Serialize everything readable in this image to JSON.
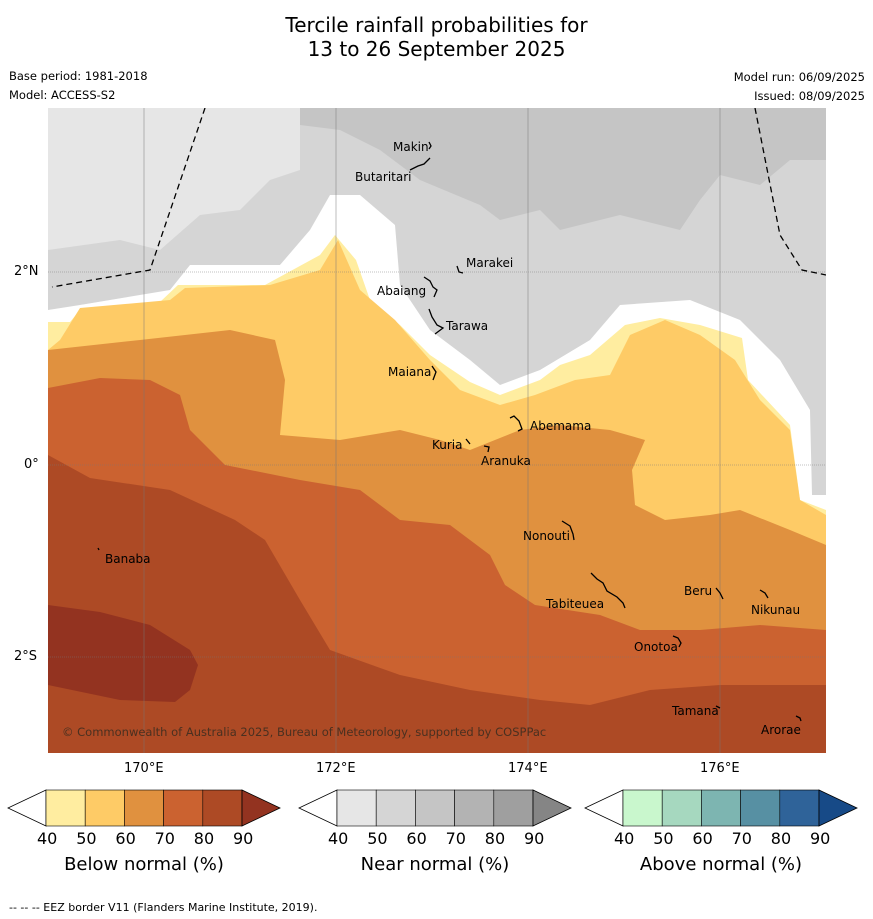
{
  "title_line1": "Tercile rainfall probabilities for",
  "title_line2": "13 to 26 September 2025",
  "base_period": "Base period: 1981-2018",
  "model": "Model: ACCESS-S2",
  "model_run": "Model run: 06/09/2025",
  "issued": "Issued: 08/09/2025",
  "lat_ticks": [
    "2°N",
    "0°",
    "2°S"
  ],
  "lon_ticks": [
    "170°E",
    "172°E",
    "174°E",
    "176°E"
  ],
  "islands": [
    "Makin",
    "Butaritari",
    "Marakei",
    "Abaiang",
    "Tarawa",
    "Maiana",
    "Abemama",
    "Kuria",
    "Aranuka",
    "Nonouti",
    "Banaba",
    "Beru",
    "Tabiteuea",
    "Nikunau",
    "Onotoa",
    "Tamana",
    "Arorae"
  ],
  "copyright": "© Commonwealth of Australia 2025, Bureau of Meteorology, supported by COSPPac",
  "colorbars": [
    {
      "label": "Below normal (%)",
      "ticks": [
        "40",
        "50",
        "60",
        "70",
        "80",
        "90"
      ],
      "colors": [
        "#ffffff",
        "#ffeda0",
        "#fecb66",
        "#e0913f",
        "#cb6230",
        "#ad4a25",
        "#933320"
      ]
    },
    {
      "label": "Near normal (%)",
      "ticks": [
        "40",
        "50",
        "60",
        "70",
        "80",
        "90"
      ],
      "colors": [
        "#ffffff",
        "#e6e6e6",
        "#d5d5d5",
        "#c5c5c5",
        "#b3b3b3",
        "#9f9f9f",
        "#858585"
      ]
    },
    {
      "label": "Above normal (%)",
      "ticks": [
        "40",
        "50",
        "60",
        "70",
        "80",
        "90"
      ],
      "colors": [
        "#ffffff",
        "#c9f7cd",
        "#a6d8bf",
        "#7db5b1",
        "#5790a3",
        "#2f6399",
        "#174a87"
      ]
    }
  ],
  "footer": "--  --  -- EEZ border V11 (Flanders Marine Institute, 2019)."
}
